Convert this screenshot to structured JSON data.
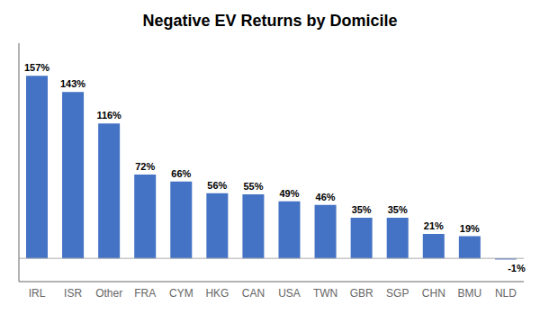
{
  "chart_data": {
    "type": "bar",
    "title": "Negative EV Returns by Domicile",
    "categories": [
      "IRL",
      "ISR",
      "Other",
      "FRA",
      "CYM",
      "HKG",
      "CAN",
      "USA",
      "TWN",
      "GBR",
      "SGP",
      "CHN",
      "BMU",
      "NLD"
    ],
    "values": [
      157,
      143,
      116,
      72,
      66,
      56,
      55,
      49,
      46,
      35,
      35,
      21,
      19,
      -1
    ],
    "value_labels": [
      "157%",
      "143%",
      "116%",
      "72%",
      "66%",
      "56%",
      "55%",
      "49%",
      "46%",
      "35%",
      "35%",
      "21%",
      "19%",
      "-1%"
    ],
    "data_labels": true,
    "color": "#4472C4",
    "ylim": [
      -20,
      185
    ],
    "grid": false,
    "tick_labels": "x"
  }
}
